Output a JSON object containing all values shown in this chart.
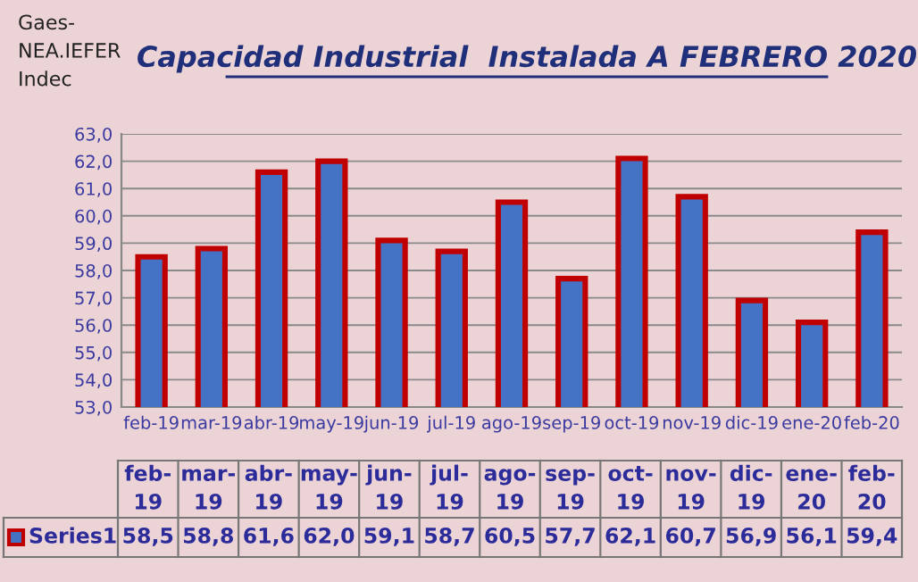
{
  "chart_data": {
    "type": "bar",
    "title": "Capacidad Industrial  Instalada A FEBRERO 2020",
    "annotations": [
      "Gaes-\nNEA.IEFER\nIndec"
    ],
    "categories": [
      "feb-19",
      "mar-19",
      "abr-19",
      "may-19",
      "jun-19",
      "jul-19",
      "ago-19",
      "sep-19",
      "oct-19",
      "nov-19",
      "dic-19",
      "ene-20",
      "feb-20"
    ],
    "series": [
      {
        "name": "Series1",
        "color": "#4472c4",
        "values": [
          58.5,
          58.8,
          61.6,
          62.0,
          59.1,
          58.7,
          60.5,
          57.7,
          62.1,
          60.7,
          56.9,
          56.1,
          59.4
        ],
        "value_labels": [
          "58,5",
          "58,8",
          "61,6",
          "62,0",
          "59,1",
          "58,7",
          "60,5",
          "57,7",
          "62,1",
          "60,7",
          "56,9",
          "56,1",
          "59,4"
        ]
      }
    ],
    "ylim": [
      53,
      63
    ],
    "yticks": [
      {
        "value": 53,
        "label": "53,0"
      },
      {
        "value": 54,
        "label": "54,0"
      },
      {
        "value": 55,
        "label": "55,0"
      },
      {
        "value": 56,
        "label": "56,0"
      },
      {
        "value": 57,
        "label": "57,0"
      },
      {
        "value": 58,
        "label": "58,0"
      },
      {
        "value": 59,
        "label": "59,0"
      },
      {
        "value": 60,
        "label": "60,0"
      },
      {
        "value": 61,
        "label": "61,0"
      },
      {
        "value": 62,
        "label": "62,0"
      },
      {
        "value": 63,
        "label": "63,0"
      }
    ],
    "grid": "y",
    "legend": "bottom"
  }
}
